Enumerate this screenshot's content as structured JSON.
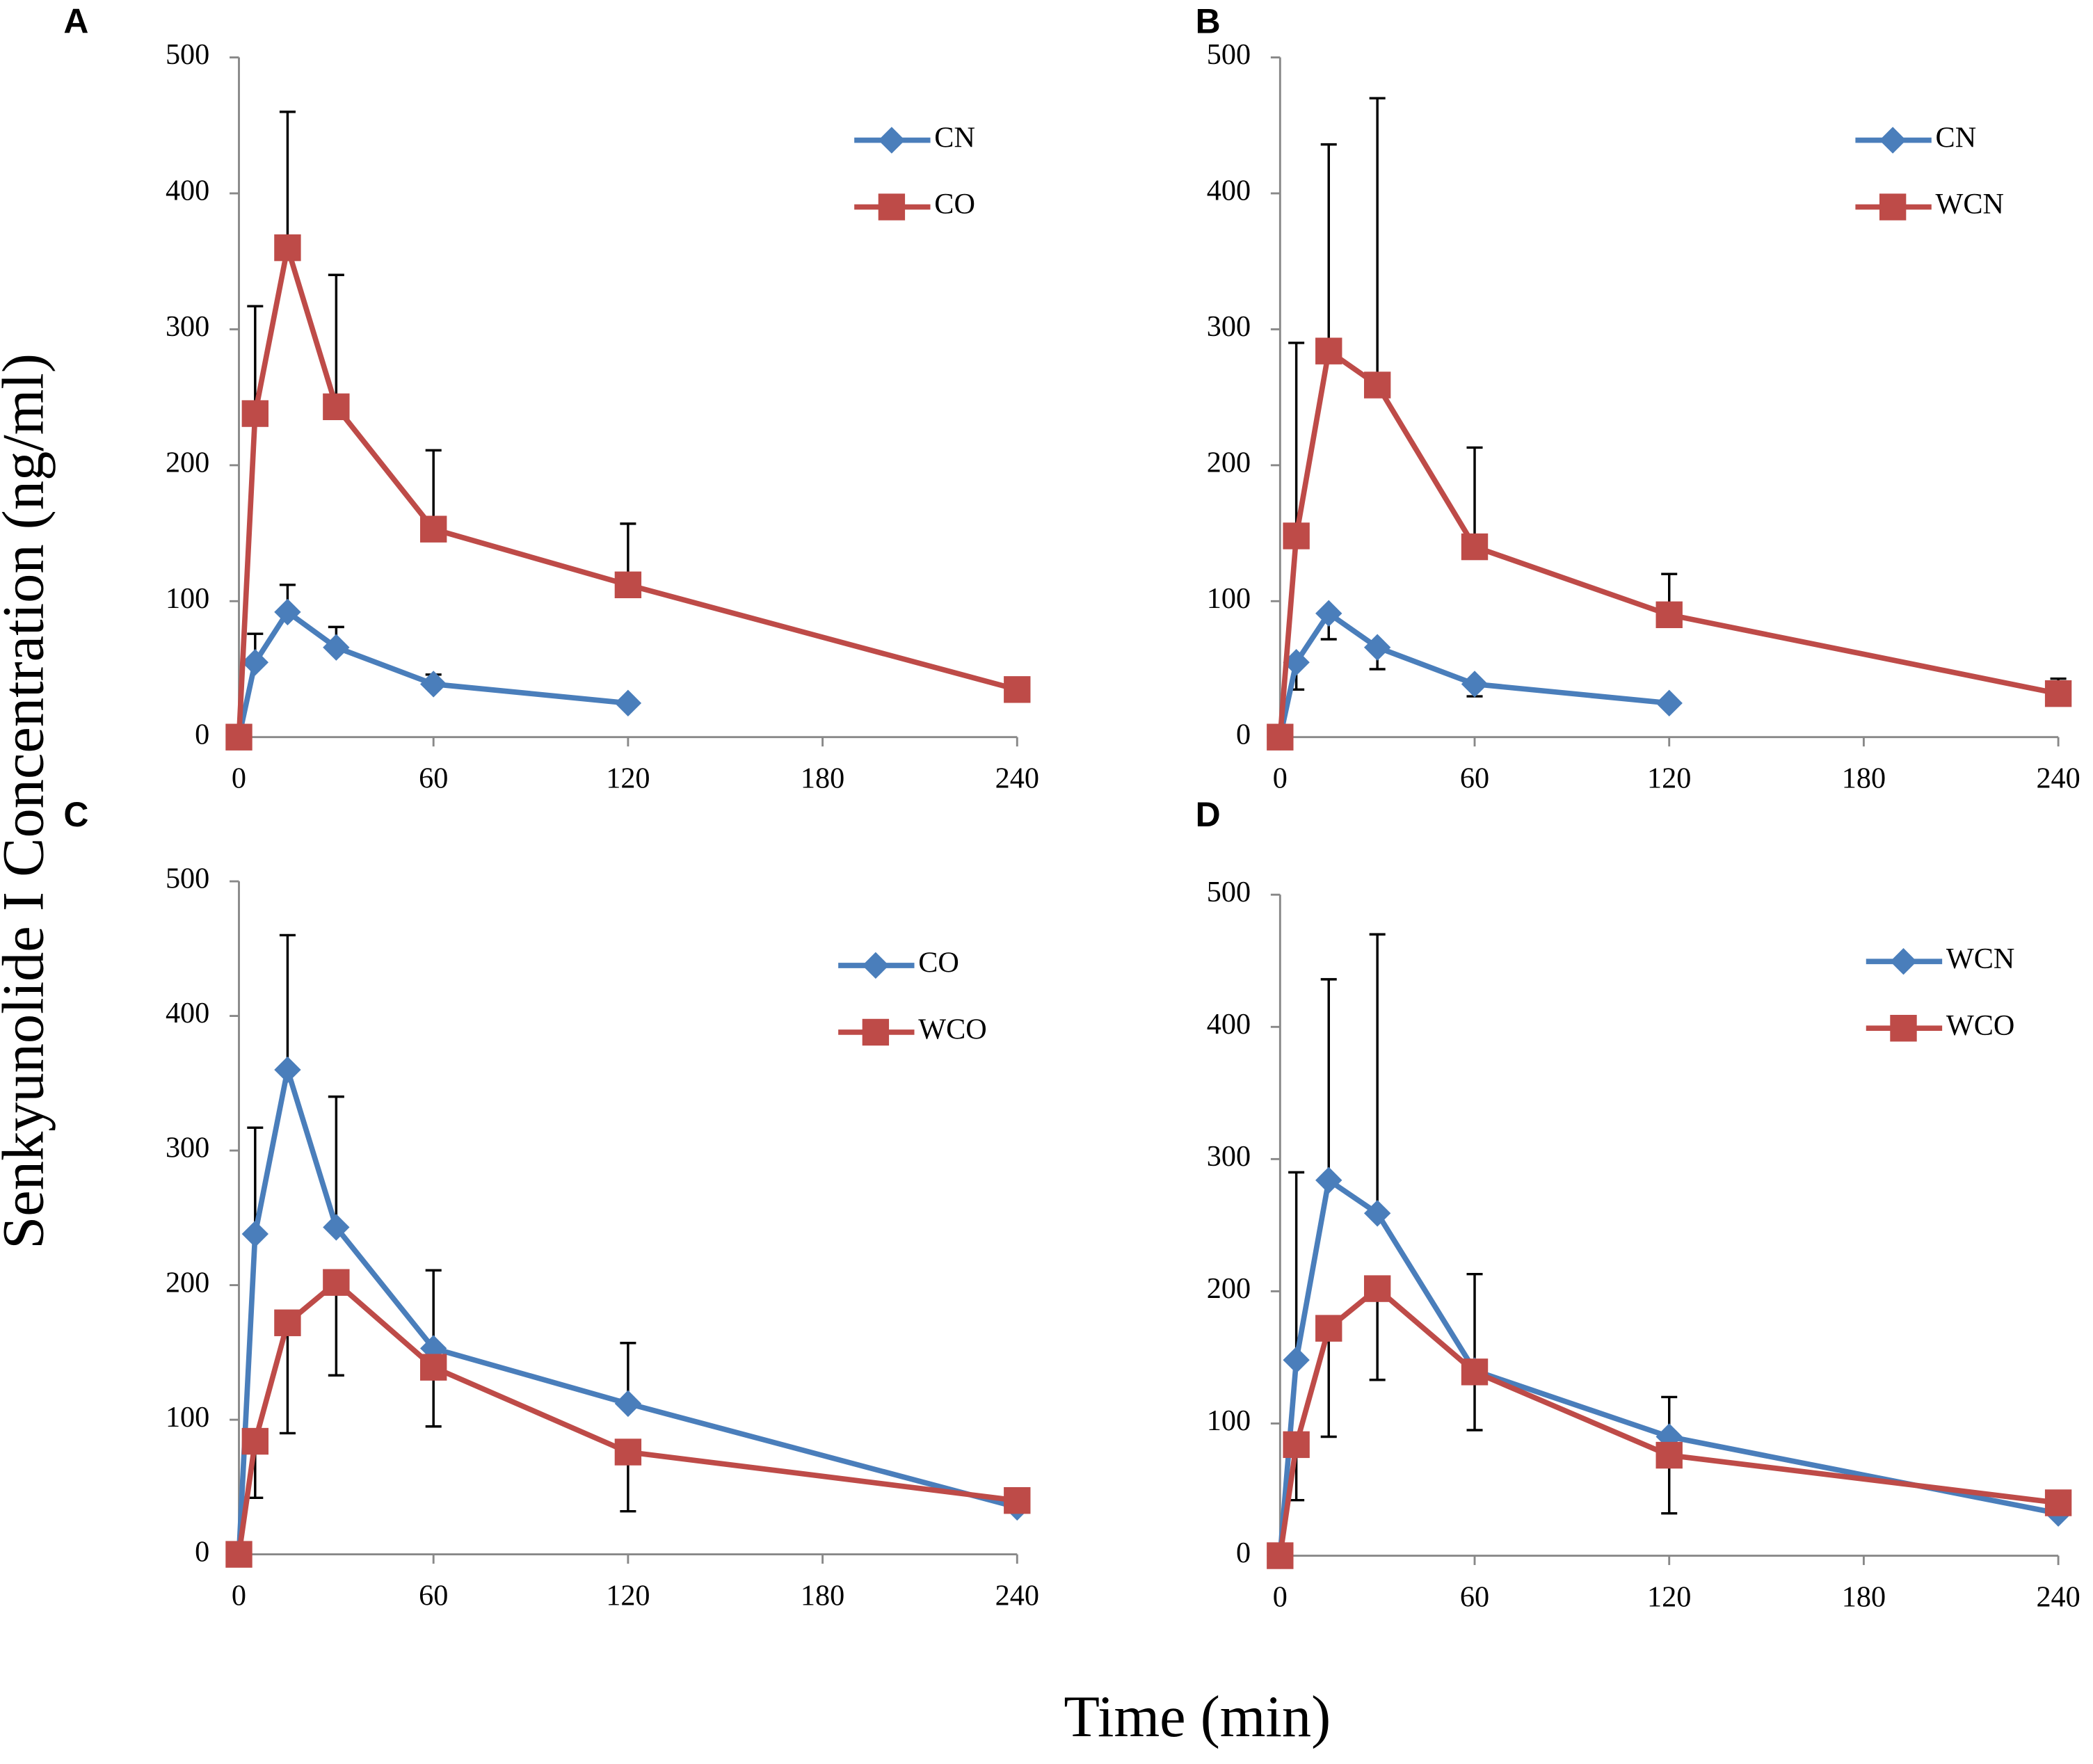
{
  "y_label": "Senkyunolide I Concentration (ng/ml)",
  "x_label": "Time (min)",
  "chart_data": [
    {
      "type": "line",
      "panel": "A",
      "x": [
        0,
        5,
        15,
        30,
        60,
        120,
        240
      ],
      "xlim": [
        0,
        240
      ],
      "xticks": [
        0,
        60,
        120,
        180,
        240
      ],
      "ylim": [
        0,
        500
      ],
      "yticks": [
        0,
        100,
        200,
        300,
        400,
        500
      ],
      "series": [
        {
          "name": "CN",
          "color": "#4a7ebb",
          "marker": "diamond",
          "error_direction": "up",
          "values": [
            0,
            55,
            92,
            66,
            39,
            25,
            null
          ],
          "errors": [
            null,
            21,
            20,
            15,
            7,
            null,
            null
          ]
        },
        {
          "name": "CO",
          "color": "#be4b48",
          "marker": "square",
          "error_direction": "up",
          "values": [
            0,
            238,
            360,
            243,
            153,
            112,
            35
          ],
          "errors": [
            null,
            79,
            100,
            97,
            58,
            45,
            null
          ]
        }
      ]
    },
    {
      "type": "line",
      "panel": "B",
      "x": [
        0,
        5,
        15,
        30,
        60,
        120,
        240
      ],
      "xlim": [
        0,
        240
      ],
      "xticks": [
        0,
        60,
        120,
        180,
        240
      ],
      "ylim": [
        0,
        500
      ],
      "yticks": [
        0,
        100,
        200,
        300,
        400,
        500
      ],
      "series": [
        {
          "name": "CN",
          "color": "#4a7ebb",
          "marker": "diamond",
          "error_direction": "down",
          "values": [
            0,
            55,
            91,
            66,
            39,
            25,
            null
          ],
          "errors": [
            null,
            20,
            19,
            16,
            9,
            null,
            null
          ]
        },
        {
          "name": "WCN",
          "color": "#be4b48",
          "marker": "square",
          "error_direction": "up",
          "values": [
            0,
            148,
            284,
            259,
            140,
            90,
            32
          ],
          "errors": [
            null,
            142,
            152,
            211,
            73,
            30,
            11
          ]
        }
      ]
    },
    {
      "type": "line",
      "panel": "C",
      "x": [
        0,
        5,
        15,
        30,
        60,
        120,
        240
      ],
      "xlim": [
        0,
        240
      ],
      "xticks": [
        0,
        60,
        120,
        180,
        240
      ],
      "ylim": [
        0,
        500
      ],
      "yticks": [
        0,
        100,
        200,
        300,
        400,
        500
      ],
      "series": [
        {
          "name": "CO",
          "color": "#4a7ebb",
          "marker": "diamond",
          "error_direction": "up",
          "values": [
            0,
            238,
            360,
            243,
            153,
            112,
            35
          ],
          "errors": [
            null,
            79,
            100,
            97,
            58,
            45,
            null
          ]
        },
        {
          "name": "WCO",
          "color": "#be4b48",
          "marker": "square",
          "error_direction": "down",
          "values": [
            0,
            84,
            172,
            202,
            139,
            76,
            40
          ],
          "errors": [
            null,
            42,
            82,
            69,
            44,
            44,
            null
          ]
        }
      ]
    },
    {
      "type": "line",
      "panel": "D",
      "x": [
        0,
        5,
        15,
        30,
        60,
        120,
        240
      ],
      "xlim": [
        0,
        240
      ],
      "xticks": [
        0,
        60,
        120,
        180,
        240
      ],
      "ylim": [
        0,
        500
      ],
      "yticks": [
        0,
        100,
        200,
        300,
        400,
        500
      ],
      "series": [
        {
          "name": "WCN",
          "color": "#4a7ebb",
          "marker": "diamond",
          "error_direction": "up",
          "values": [
            0,
            148,
            284,
            259,
            140,
            90,
            32
          ],
          "errors": [
            null,
            142,
            152,
            211,
            73,
            30,
            null
          ]
        },
        {
          "name": "WCO",
          "color": "#be4b48",
          "marker": "square",
          "error_direction": "down",
          "values": [
            0,
            84,
            172,
            202,
            139,
            76,
            40
          ],
          "errors": [
            null,
            42,
            82,
            69,
            44,
            44,
            null
          ]
        }
      ]
    }
  ]
}
